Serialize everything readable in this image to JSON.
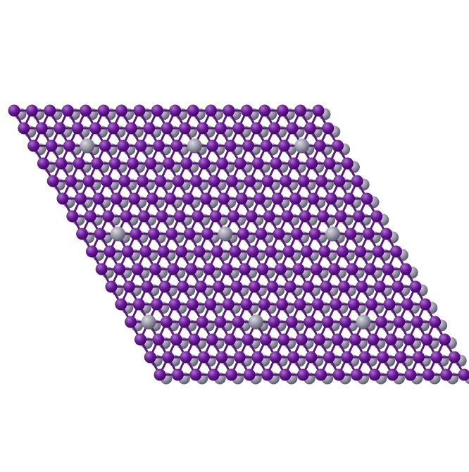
{
  "scene": {
    "background_color": "#ffffff",
    "description_type": "molecular-lattice-render"
  },
  "atoms": {
    "primary": {
      "element_color": "#6a1b9a",
      "highlight_color": "#b06fd0",
      "shadow_color": "#3d0a5a"
    },
    "secondary": {
      "element_color": "#9a9aaa",
      "highlight_color": "#dcdce6",
      "shadow_color": "#5c5c6c"
    },
    "bond_color": "#5a1a7a"
  }
}
